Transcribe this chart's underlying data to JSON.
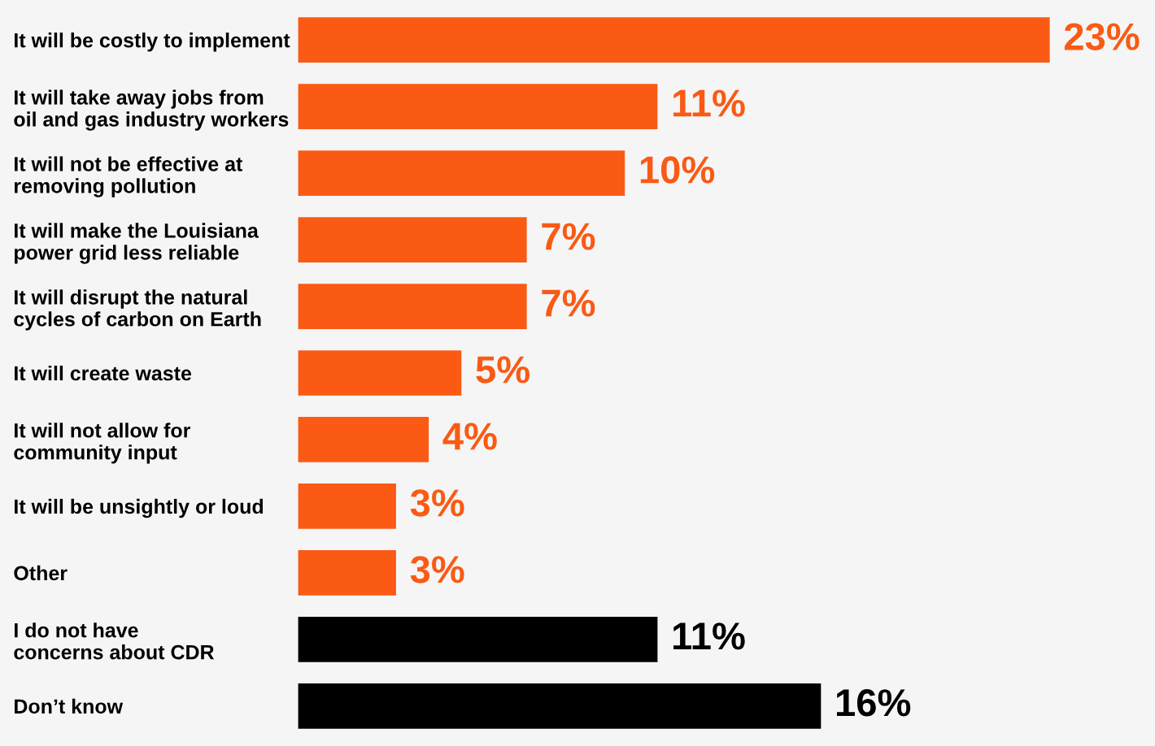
{
  "chart_data": {
    "type": "bar",
    "orientation": "horizontal",
    "categories": [
      "It will be costly to implement",
      "It will take away jobs from\noil and gas industry workers",
      "It will not be effective at\nremoving pollution",
      "It will make the Louisiana\npower grid less reliable",
      "It will disrupt the natural\ncycles of carbon on Earth",
      "It will create waste",
      "It will not allow for\ncommunity input",
      "It will be unsightly or loud",
      "Other",
      "I do not have\nconcerns about CDR",
      "Don’t know"
    ],
    "values": [
      23,
      11,
      10,
      7,
      7,
      5,
      4,
      3,
      3,
      11,
      16
    ],
    "colors": [
      "#fa5a14",
      "#fa5a14",
      "#fa5a14",
      "#fa5a14",
      "#fa5a14",
      "#fa5a14",
      "#fa5a14",
      "#fa5a14",
      "#fa5a14",
      "#000000",
      "#000000"
    ],
    "value_labels": [
      "23%",
      "11%",
      "10%",
      "7%",
      "7%",
      "5%",
      "4%",
      "3%",
      "3%",
      "11%",
      "16%"
    ],
    "tick_labels": "y",
    "grid": false,
    "legend": false
  }
}
